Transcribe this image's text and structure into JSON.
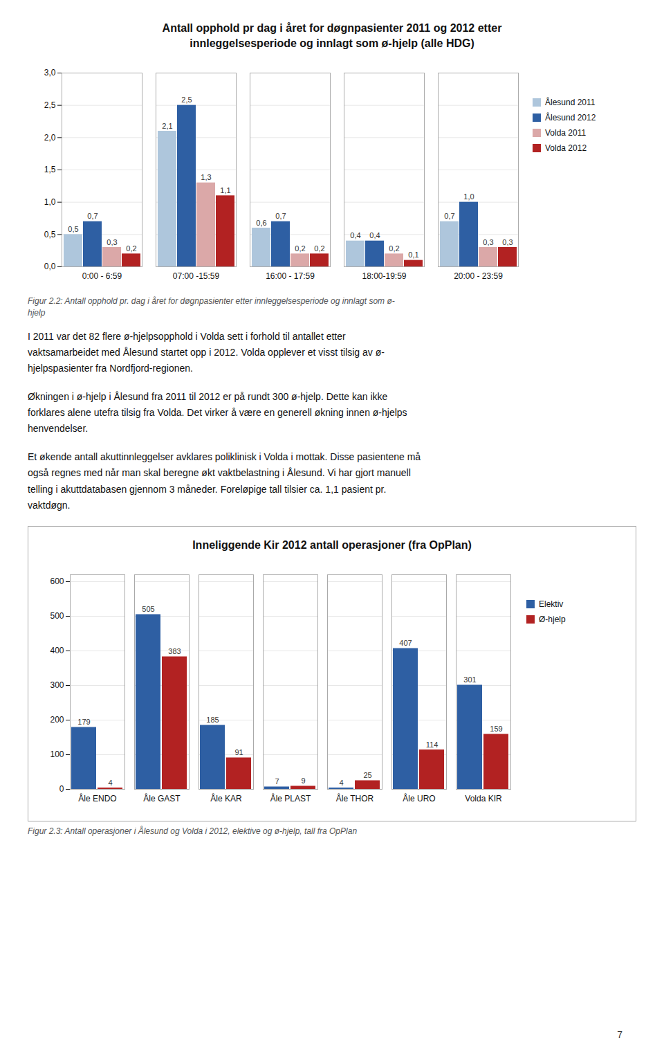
{
  "chart_data": [
    {
      "type": "bar",
      "title": "Antall opphold pr dag i året for døgnpasienter 2011 og 2012 etter\ninnleggelsesperiode og innlagt som ø-hjelp (alle HDG)",
      "caption": "Figur 2.2: Antall opphold pr. dag i året for døgnpasienter etter innleggelsesperiode og innlagt som ø-\nhjelp",
      "annotations": [
        "I 2011 var det 82 flere ø-hjelpsopphold i Volda sett i forhold til antallet etter\nvaktsamarbeidet med Ålesund startet opp i 2012. Volda opplever et visst tilsig av ø-\nhjelpspasienter fra Nordfjord-regionen.",
        "Økningen i ø-hjelp i Ålesund fra 2011 til 2012 er på rundt 300 ø-hjelp.  Dette kan ikke\nforklares alene utefra tilsig fra Volda. Det virker å være en generell økning innen ø-hjelps\nhenvendelser.",
        "Et økende antall akuttinnleggelser avklares poliklinisk i Volda i mottak. Disse pasientene må\nogså regnes med når man skal beregne økt vaktbelastning i Ålesund. Vi har gjort manuell\ntelling i akuttdatabasen gjennom 3 måneder. Foreløpige tall tilsier ca. 1,1 pasient pr.\nvaktdøgn."
      ],
      "categories": [
        "0:00 - 6:59",
        "07:00 -15:59",
        "16:00 - 17:59",
        "18:00-19:59",
        "20:00 - 23:59"
      ],
      "series": [
        {
          "name": "Ålesund 2011",
          "color": "#aec6dc",
          "values": [
            0.5,
            2.1,
            0.6,
            0.4,
            0.7
          ],
          "value_labels": [
            "0,5",
            "2,1",
            "0,6",
            "0,4",
            "0,7"
          ]
        },
        {
          "name": "Ålesund 2012",
          "color": "#2e5fa3",
          "values": [
            0.7,
            2.5,
            0.7,
            0.4,
            1.0
          ],
          "value_labels": [
            "0,7",
            "2,5",
            "0,7",
            "0,4",
            "1,0"
          ]
        },
        {
          "name": "Volda 2011",
          "color": "#dba8a8",
          "values": [
            0.3,
            1.3,
            0.2,
            0.2,
            0.3
          ],
          "value_labels": [
            "0,3",
            "1,3",
            "0,2",
            "0,2",
            "0,3"
          ]
        },
        {
          "name": "Volda 2012",
          "color": "#b22222",
          "values": [
            0.2,
            1.1,
            0.2,
            0.1,
            0.3
          ],
          "value_labels": [
            "0,2",
            "1,1",
            "0,2",
            "0,1",
            "0,3"
          ]
        }
      ],
      "ylim": [
        0.0,
        3.0
      ],
      "yticks": [
        {
          "value": 0.0,
          "label": "0,0"
        },
        {
          "value": 0.5,
          "label": "0,5"
        },
        {
          "value": 1.0,
          "label": "1,0"
        },
        {
          "value": 1.5,
          "label": "1,5"
        },
        {
          "value": 2.0,
          "label": "2,0"
        },
        {
          "value": 2.5,
          "label": "2,5"
        },
        {
          "value": 3.0,
          "label": "3,0"
        }
      ],
      "grid": true,
      "legend": "right",
      "data_labels": true
    },
    {
      "type": "bar",
      "title": "Inneliggende Kir 2012 antall operasjoner (fra OpPlan)",
      "caption": "Figur 2.3: Antall operasjoner i Ålesund og Volda i 2012, elektive og ø-hjelp, tall fra OpPlan",
      "annotations": [
        "7"
      ],
      "categories": [
        "Åle ENDO",
        "Åle GAST",
        "Åle KAR",
        "Åle PLAST",
        "Åle THOR",
        "Åle URO",
        "Volda KIR"
      ],
      "series": [
        {
          "name": "Elektiv",
          "color": "#2e5fa3",
          "values": [
            179,
            505,
            185,
            7,
            4,
            407,
            301
          ]
        },
        {
          "name": "Ø-hjelp",
          "color": "#b22222",
          "values": [
            4,
            383,
            91,
            9,
            25,
            114,
            159
          ]
        }
      ],
      "ylim": [
        0,
        620
      ],
      "yticks": [
        0,
        100,
        200,
        300,
        400,
        500,
        600
      ],
      "grid": true,
      "legend": "right",
      "data_labels": true
    }
  ]
}
